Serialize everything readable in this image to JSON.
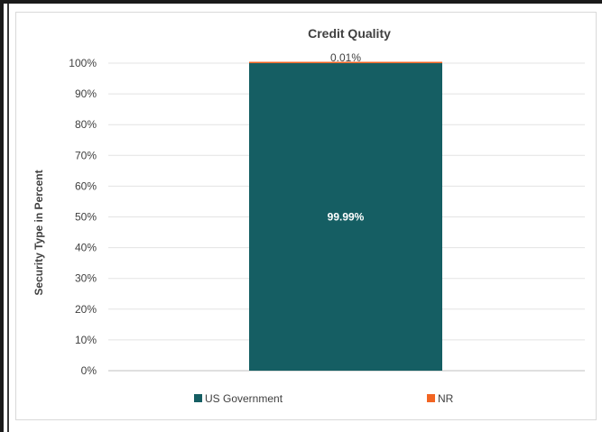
{
  "chart_data": {
    "type": "bar",
    "stacked": true,
    "title": "Credit Quality",
    "xlabel": "",
    "ylabel": "Security Type in Percent",
    "ylim": [
      0,
      100
    ],
    "yticks": [
      "0%",
      "10%",
      "20%",
      "30%",
      "40%",
      "50%",
      "60%",
      "70%",
      "80%",
      "90%",
      "100%"
    ],
    "grid": true,
    "legend_position": "bottom",
    "categories": [
      ""
    ],
    "series": [
      {
        "name": "US Government",
        "values": [
          99.99
        ],
        "label": "99.99%",
        "color": "#155e63"
      },
      {
        "name": "NR",
        "values": [
          0.01
        ],
        "label": "0.01%",
        "color": "#f26522"
      }
    ]
  }
}
